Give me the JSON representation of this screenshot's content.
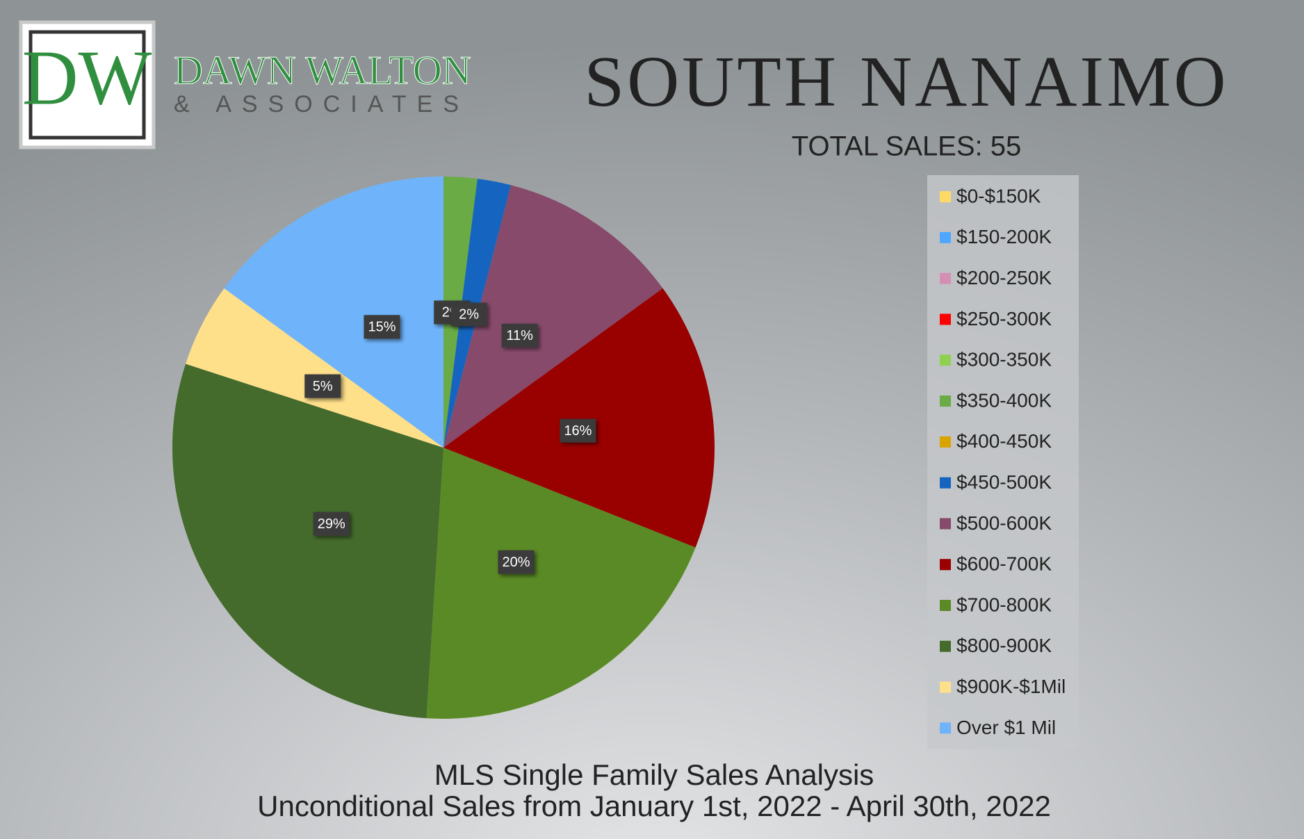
{
  "logo": {
    "initials": "DW",
    "name": "DAWN WALTON",
    "tagline": "& ASSOCIATES"
  },
  "chart_data": {
    "type": "pie",
    "title": "SOUTH NANAIMO",
    "subtitle": "TOTAL SALES: 55",
    "footer": [
      "MLS Single Family Sales Analysis",
      "Unconditional Sales from January 1st, 2022 - April 30th, 2022"
    ],
    "categories": [
      "$0-$150K",
      "$150-200K",
      "$200-250K",
      "$250-300K",
      "$300-350K",
      "$350-400K",
      "$400-450K",
      "$450-500K",
      "$500-600K",
      "$600-700K",
      "$700-800K",
      "$800-900K",
      "$900K-$1Mil",
      "Over $1 Mil"
    ],
    "values": [
      0,
      0,
      0,
      0,
      0,
      2,
      0,
      2,
      11,
      16,
      20,
      29,
      5,
      15
    ],
    "value_labels": [
      null,
      null,
      null,
      null,
      null,
      "2%",
      null,
      "2%",
      "11%",
      "16%",
      "20%",
      "29%",
      "5%",
      "15%"
    ],
    "colors": [
      "#ffd966",
      "#4da6ff",
      "#d58fb3",
      "#ff0000",
      "#8fd14f",
      "#6aab45",
      "#d9a300",
      "#1565c0",
      "#874a6b",
      "#990000",
      "#5a8a25",
      "#446a2c",
      "#ffe08a",
      "#6fb4fb"
    ],
    "legend": "right"
  }
}
